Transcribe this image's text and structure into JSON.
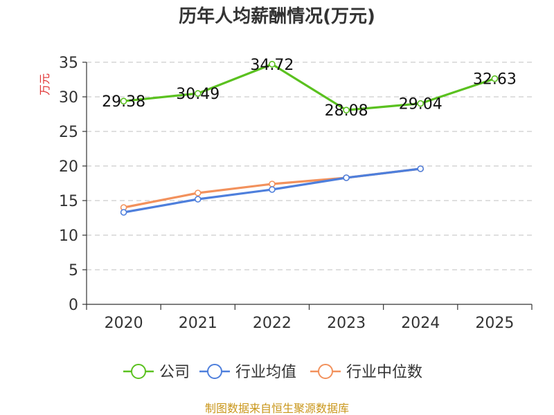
{
  "chart_data": {
    "type": "line",
    "title": "历年人均薪酬情况(万元)",
    "ylabel": "万元",
    "xlabel": "",
    "categories": [
      "2020",
      "2021",
      "2022",
      "2023",
      "2024",
      "2025"
    ],
    "ylim": [
      0,
      35
    ],
    "yticks": [
      0,
      5,
      10,
      15,
      20,
      25,
      30,
      35
    ],
    "grid": true,
    "legend_position": "bottom",
    "series": [
      {
        "name": "公司",
        "color": "#5ac11f",
        "values": [
          29.38,
          30.49,
          34.72,
          28.08,
          29.04,
          32.63
        ],
        "labels": [
          "29.38",
          "30.49",
          "34.72",
          "28.08",
          "29.04",
          "32.63"
        ]
      },
      {
        "name": "行业均值",
        "color": "#4e7fdc",
        "values": [
          13.3,
          15.2,
          16.6,
          18.3,
          19.6,
          null
        ]
      },
      {
        "name": "行业中位数",
        "color": "#f2915c",
        "values": [
          14.0,
          16.1,
          17.4,
          18.3,
          19.6,
          null
        ]
      }
    ]
  },
  "footer": "制图数据来自恒生聚源数据库"
}
